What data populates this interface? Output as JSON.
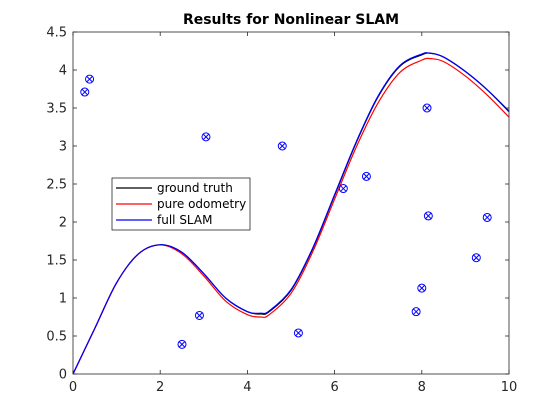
{
  "chart_data": {
    "type": "line",
    "title": "Results for Nonlinear SLAM",
    "xlabel": "",
    "ylabel": "",
    "xlim": [
      0,
      10
    ],
    "ylim": [
      0,
      4.5
    ],
    "xticks": [
      "0",
      "2",
      "4",
      "6",
      "8",
      "10"
    ],
    "yticks": [
      "0",
      "0.5",
      "1",
      "1.5",
      "2",
      "2.5",
      "3",
      "3.5",
      "4",
      "4.5"
    ],
    "grid": false,
    "legend_position": "middle-left",
    "colors": {
      "ground_truth": "#000000",
      "pure_odometry": "#ff0000",
      "full_slam": "#0000ff",
      "landmarks": "#0000ff",
      "axes": "#262626"
    },
    "series": [
      {
        "name": "ground truth",
        "color": "#000000",
        "x": [
          0,
          0.5,
          1.0,
          1.5,
          2.0,
          2.5,
          3.0,
          3.5,
          4.0,
          4.3,
          4.5,
          5.0,
          5.5,
          6.0,
          6.5,
          7.0,
          7.5,
          8.0,
          8.2,
          8.5,
          9.0,
          9.5,
          10.0
        ],
        "y": [
          0,
          0.6,
          1.2,
          1.58,
          1.7,
          1.6,
          1.32,
          1.0,
          0.82,
          0.79,
          0.82,
          1.1,
          1.65,
          2.35,
          3.05,
          3.65,
          4.05,
          4.2,
          4.22,
          4.17,
          3.98,
          3.74,
          3.46
        ]
      },
      {
        "name": "pure odometry",
        "color": "#ff0000",
        "x": [
          0,
          0.5,
          1.0,
          1.5,
          2.0,
          2.5,
          3.0,
          3.5,
          4.0,
          4.3,
          4.5,
          5.0,
          5.5,
          6.0,
          6.5,
          7.0,
          7.5,
          8.0,
          8.2,
          8.5,
          9.0,
          9.5,
          10.0
        ],
        "y": [
          0,
          0.6,
          1.2,
          1.58,
          1.7,
          1.58,
          1.29,
          0.96,
          0.78,
          0.75,
          0.78,
          1.06,
          1.61,
          2.3,
          2.99,
          3.57,
          3.97,
          4.13,
          4.15,
          4.11,
          3.92,
          3.67,
          3.38
        ]
      },
      {
        "name": "full SLAM",
        "color": "#0000ff",
        "x": [
          0,
          0.5,
          1.0,
          1.5,
          2.0,
          2.5,
          3.0,
          3.5,
          4.0,
          4.3,
          4.5,
          5.0,
          5.5,
          6.0,
          6.5,
          7.0,
          7.5,
          8.0,
          8.2,
          8.5,
          9.0,
          9.5,
          10.0
        ],
        "y": [
          0,
          0.6,
          1.2,
          1.58,
          1.7,
          1.6,
          1.32,
          1.0,
          0.82,
          0.8,
          0.83,
          1.11,
          1.66,
          2.36,
          3.06,
          3.66,
          4.06,
          4.21,
          4.22,
          4.17,
          3.98,
          3.74,
          3.45
        ]
      }
    ],
    "landmarks": {
      "marker": "circle-x",
      "x": [
        0.27,
        0.38,
        2.5,
        2.9,
        3.05,
        4.8,
        5.17,
        6.2,
        6.73,
        7.87,
        8.0,
        8.12,
        8.15,
        9.25,
        9.5
      ],
      "y": [
        3.71,
        3.88,
        0.39,
        0.77,
        3.12,
        3.0,
        0.54,
        2.44,
        2.6,
        0.82,
        1.13,
        3.5,
        2.08,
        1.53,
        2.06
      ]
    }
  }
}
